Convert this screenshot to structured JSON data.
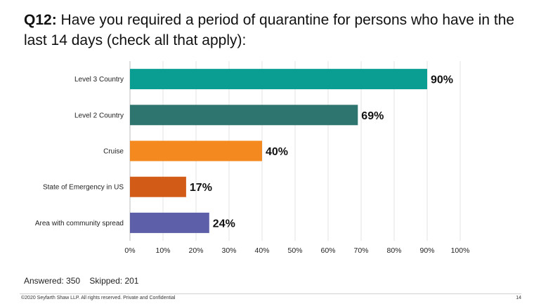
{
  "title": {
    "qnum": "Q12:",
    "text": "Have you required a period of quarantine for persons who have in the last 14 days (check all that apply):"
  },
  "chart_data": {
    "type": "bar",
    "orientation": "horizontal",
    "categories": [
      "Level 3 Country",
      "Level 2 Country",
      "Cruise",
      "State of Emergency in US",
      "Area with community spread"
    ],
    "values": [
      90,
      69,
      40,
      17,
      24
    ],
    "value_labels": [
      "90%",
      "69%",
      "40%",
      "17%",
      "24%"
    ],
    "colors": [
      "#0a9e92",
      "#2e7570",
      "#f48a1f",
      "#d35b18",
      "#5d5fa8"
    ],
    "xlim": [
      0,
      100
    ],
    "xticks": [
      "0%",
      "10%",
      "20%",
      "30%",
      "40%",
      "50%",
      "60%",
      "70%",
      "80%",
      "90%",
      "100%"
    ],
    "grid": true,
    "title": "",
    "xlabel": "",
    "ylabel": ""
  },
  "stats": {
    "answered": "Answered: 350",
    "skipped": "Skipped: 201"
  },
  "footer": {
    "copyright": "©2020 Seyfarth Shaw LLP. All rights reserved. Private and Confidential",
    "page": "14"
  }
}
